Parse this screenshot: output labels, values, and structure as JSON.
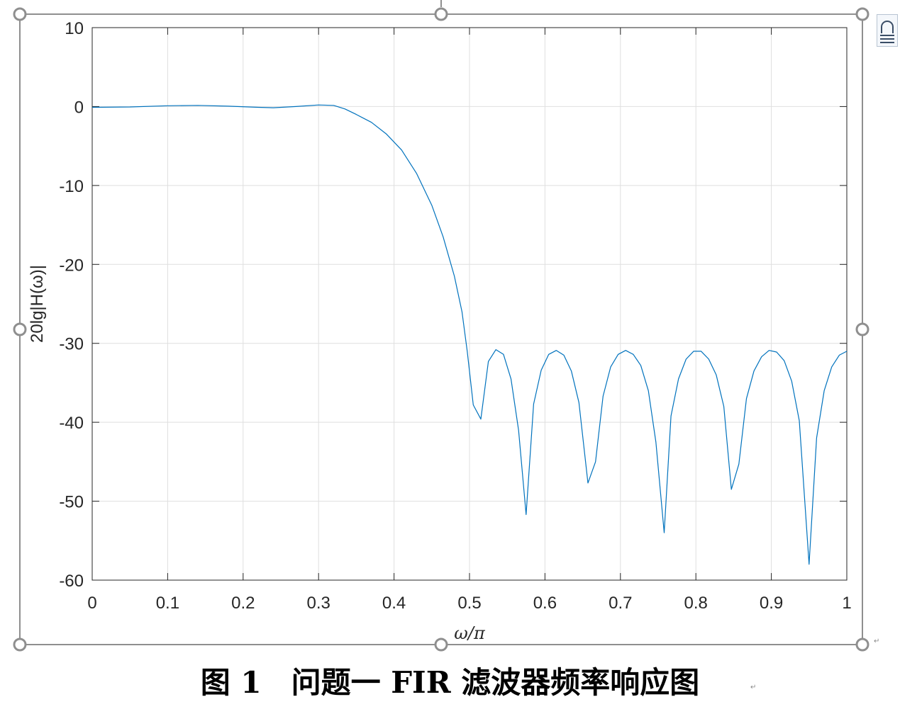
{
  "chart_data": {
    "type": "line",
    "title": "",
    "xlabel": "ω/π",
    "ylabel": "20lg|H(ω)|",
    "xlim": [
      0,
      1
    ],
    "ylim": [
      -60,
      10
    ],
    "xticks": [
      0,
      0.1,
      0.2,
      0.3,
      0.4,
      0.5,
      0.6,
      0.7,
      0.8,
      0.9,
      1
    ],
    "xtick_labels": [
      "0",
      "0.1",
      "0.2",
      "0.3",
      "0.4",
      "0.5",
      "0.6",
      "0.7",
      "0.8",
      "0.9",
      "1"
    ],
    "yticks": [
      10,
      0,
      -10,
      -20,
      -30,
      -40,
      -50,
      -60
    ],
    "ytick_labels": [
      "10",
      "0",
      "-10",
      "-20",
      "-30",
      "-40",
      "-50",
      "-60"
    ],
    "grid": true,
    "line_color": "#0072BD",
    "series": [
      {
        "x": [
          0,
          0.05,
          0.1,
          0.14,
          0.18,
          0.22,
          0.24,
          0.27,
          0.3,
          0.32,
          0.335,
          0.35,
          0.37,
          0.39,
          0.41,
          0.43,
          0.45,
          0.465,
          0.48,
          0.49,
          0.497,
          0.505,
          0.515,
          0.525,
          0.535,
          0.545,
          0.555,
          0.565,
          0.575,
          0.585,
          0.595,
          0.605,
          0.615,
          0.625,
          0.635,
          0.645,
          0.657,
          0.667,
          0.677,
          0.687,
          0.697,
          0.707,
          0.717,
          0.727,
          0.737,
          0.747,
          0.758,
          0.767,
          0.777,
          0.787,
          0.797,
          0.807,
          0.817,
          0.827,
          0.837,
          0.847,
          0.857,
          0.867,
          0.877,
          0.887,
          0.897,
          0.907,
          0.917,
          0.927,
          0.937,
          0.95,
          0.96,
          0.97,
          0.98,
          0.99,
          1.0
        ],
        "y": [
          -0.1,
          -0.05,
          0.1,
          0.15,
          0.05,
          -0.1,
          -0.15,
          0,
          0.2,
          0.15,
          -0.3,
          -1.0,
          -2.0,
          -3.5,
          -5.5,
          -8.5,
          -12.5,
          -16.5,
          -21.5,
          -26,
          -31,
          -37.8,
          -39.6,
          -32.3,
          -30.8,
          -31.4,
          -34.5,
          -41.0,
          -51.7,
          -37.7,
          -33.4,
          -31.4,
          -30.9,
          -31.5,
          -33.5,
          -37.5,
          -47.7,
          -45.0,
          -36.7,
          -33.0,
          -31.4,
          -30.9,
          -31.4,
          -32.8,
          -36.0,
          -42.5,
          -54.0,
          -39.2,
          -34.5,
          -32.0,
          -31.0,
          -31.0,
          -32.0,
          -34.0,
          -38.0,
          -48.5,
          -45.3,
          -37.0,
          -33.5,
          -31.7,
          -30.9,
          -31.1,
          -32.2,
          -34.8,
          -39.8,
          -58.0,
          -42.0,
          -36.0,
          -33.0,
          -31.5,
          -31.0
        ]
      }
    ]
  },
  "caption": {
    "text": "图 1　问题一 FIR 滤波器频率响应图",
    "mark": "↵"
  }
}
